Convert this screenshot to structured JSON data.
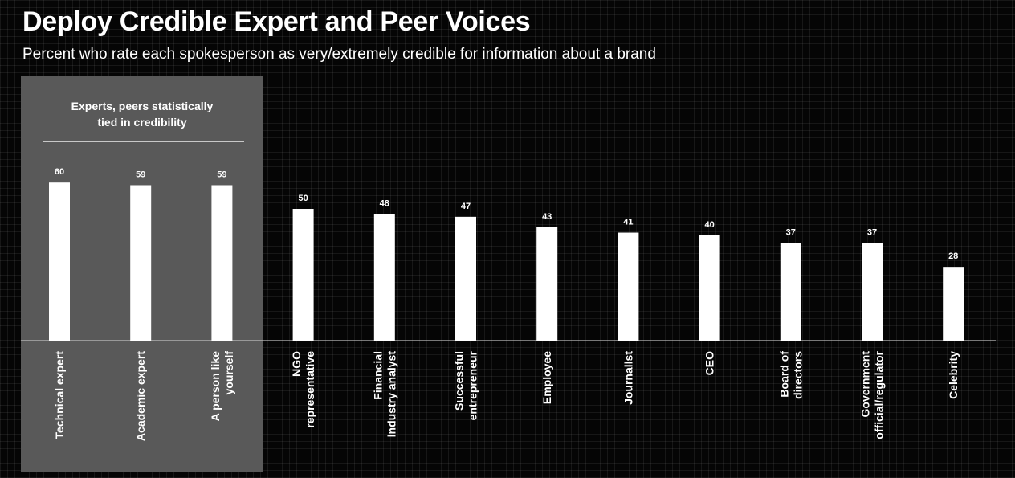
{
  "title": "Deploy Credible Expert and Peer Voices",
  "subtitle": "Percent who rate each spokesperson as very/extremely credible for information about a brand",
  "highlight": {
    "label_lines": [
      "Experts, peers statistically",
      "tied in credibility"
    ]
  },
  "colors": {
    "background": "#050505",
    "bar": "#ffffff",
    "highlight": "#595959",
    "text": "#ffffff"
  },
  "chart_data": {
    "type": "bar",
    "title": "Deploy Credible Expert and Peer Voices",
    "subtitle": "Percent who rate each spokesperson as very/extremely credible for information about a brand",
    "xlabel": "",
    "ylabel": "",
    "grid": false,
    "categories": [
      [
        "Technical expert"
      ],
      [
        "Academic expert"
      ],
      [
        "A person like",
        "yourself"
      ],
      [
        "NGO",
        "representative"
      ],
      [
        "Financial",
        "industry analyst"
      ],
      [
        "Successful",
        "entrepreneur"
      ],
      [
        "Employee"
      ],
      [
        "Journalist"
      ],
      [
        "CEO"
      ],
      [
        "Board of",
        "directors"
      ],
      [
        "Government",
        "official/regulator"
      ],
      [
        "Celebrity"
      ]
    ],
    "values": [
      60,
      59,
      59,
      50,
      48,
      47,
      43,
      41,
      40,
      37,
      37,
      28
    ],
    "highlighted": [
      0,
      1,
      2
    ]
  }
}
